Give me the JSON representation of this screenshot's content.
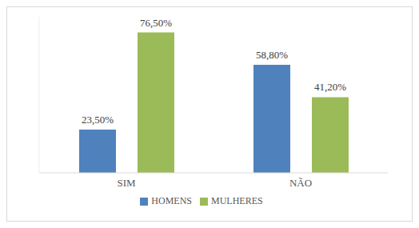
{
  "chart_data": {
    "type": "bar",
    "categories": [
      "SIM",
      "NÃO"
    ],
    "series": [
      {
        "name": "HOMENS",
        "color": "#4f81bd",
        "values": [
          23.5,
          58.8
        ],
        "value_labels": [
          "23,50%",
          "58,80%"
        ]
      },
      {
        "name": "MULHERES",
        "color": "#9bbb59",
        "values": [
          76.5,
          41.2
        ],
        "value_labels": [
          "76,50%",
          "41,20%"
        ]
      }
    ],
    "ylim": [
      0,
      85
    ],
    "grid": false,
    "legend": "bottom",
    "data_labels": true,
    "tick_labels": "x"
  }
}
